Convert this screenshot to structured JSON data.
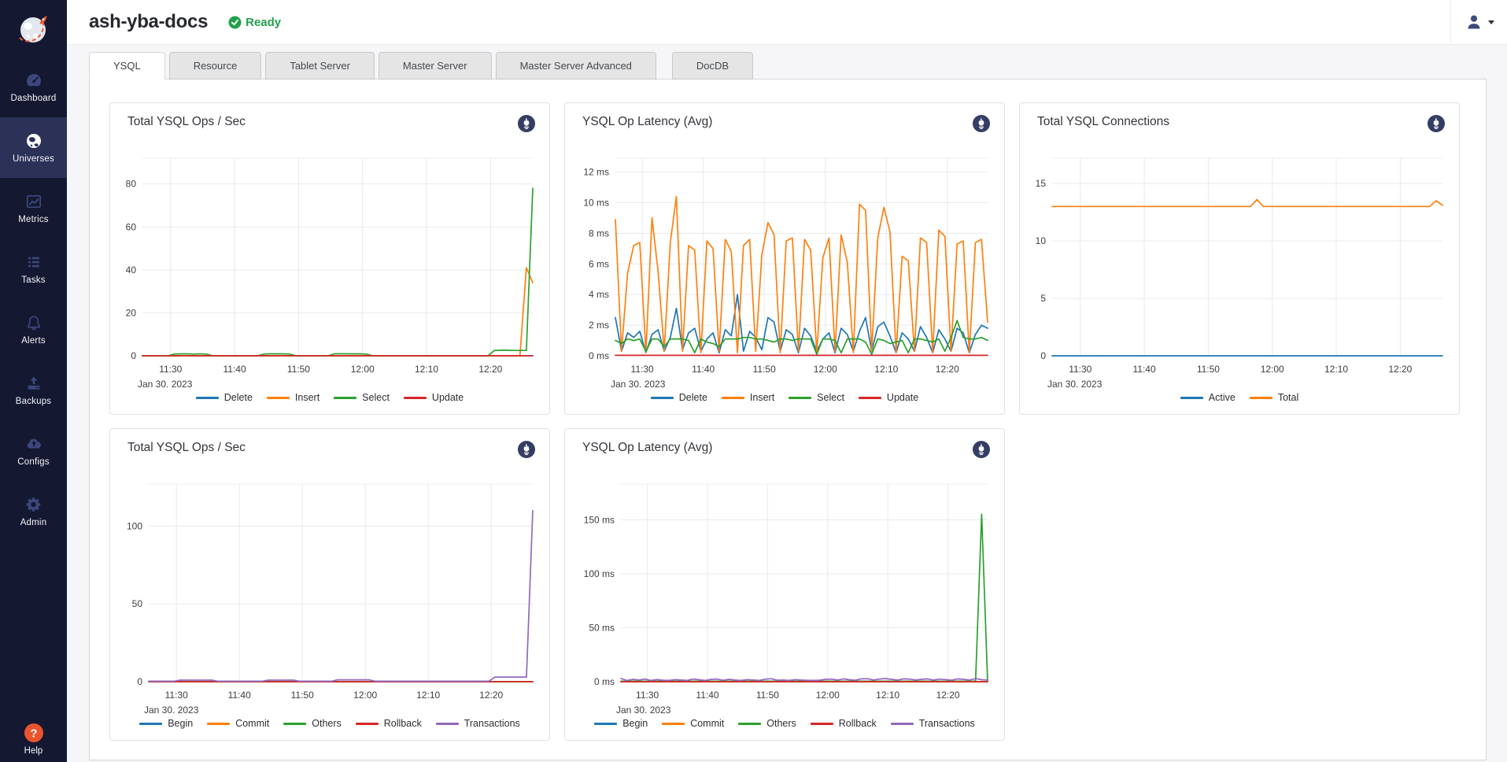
{
  "app": {
    "title": "ash-yba-docs",
    "status": "Ready"
  },
  "colors": {
    "sidebar_bg": "#151831",
    "sidebar_active_bg": "#2b3157",
    "ready_green": "#23a04b",
    "help_orange": "#e9542e",
    "series_blue": "#1f77b4",
    "series_orange": "#ff7f0e",
    "series_green": "#2ca02c",
    "series_red": "#d62728",
    "series_purple": "#9467bd"
  },
  "sidebar": {
    "items": [
      {
        "id": "dashboard",
        "label": "Dashboard",
        "icon": "dashboard-gauge-icon",
        "active": false
      },
      {
        "id": "universes",
        "label": "Universes",
        "icon": "universe-globe-icon",
        "active": true
      },
      {
        "id": "metrics",
        "label": "Metrics",
        "icon": "metrics-chart-icon",
        "active": false
      },
      {
        "id": "tasks",
        "label": "Tasks",
        "icon": "tasks-list-icon",
        "active": false
      },
      {
        "id": "alerts",
        "label": "Alerts",
        "icon": "alerts-bell-icon",
        "active": false
      },
      {
        "id": "backups",
        "label": "Backups",
        "icon": "backups-upload-icon",
        "active": false
      },
      {
        "id": "configs",
        "label": "Configs",
        "icon": "configs-cloud-icon",
        "active": false
      },
      {
        "id": "admin",
        "label": "Admin",
        "icon": "admin-gear-icon",
        "active": false
      }
    ],
    "help": {
      "label": "Help",
      "icon": "help-icon"
    }
  },
  "tabs": [
    {
      "label": "YSQL",
      "active": true
    },
    {
      "label": "Resource",
      "active": false
    },
    {
      "label": "Tablet Server",
      "active": false
    },
    {
      "label": "Master Server",
      "active": false
    },
    {
      "label": "Master Server Advanced",
      "active": false
    },
    {
      "label": "DocDB",
      "active": false,
      "gap_before": true
    }
  ],
  "chart_data": [
    {
      "type": "line",
      "title": "Total YSQL Ops / Sec",
      "x_min": 0,
      "x_max": 61,
      "x_count": 62,
      "x_ticks": [
        {
          "v": 4.4,
          "label": "11:30"
        },
        {
          "v": 14.4,
          "label": "11:40"
        },
        {
          "v": 24.4,
          "label": "11:50"
        },
        {
          "v": 34.4,
          "label": "12:00"
        },
        {
          "v": 44.4,
          "label": "12:10"
        },
        {
          "v": 54.4,
          "label": "12:20"
        }
      ],
      "date_label": "Jan 30, 2023",
      "y_max": 92,
      "y_ticks": [
        {
          "v": 0,
          "label": "0"
        },
        {
          "v": 20,
          "label": "20"
        },
        {
          "v": 40,
          "label": "40"
        },
        {
          "v": 60,
          "label": "60"
        },
        {
          "v": 80,
          "label": "80"
        }
      ],
      "legend_position": "bottom-center",
      "grid": true,
      "series": [
        {
          "name": "Delete",
          "color": "#1f77b4",
          "values": 0.05
        },
        {
          "name": "Insert",
          "color": "#ff7f0e",
          "values": [
            0,
            0,
            0,
            0,
            0,
            0,
            0,
            0,
            0,
            0,
            0,
            0,
            0,
            0,
            0,
            0,
            0,
            0,
            0,
            0,
            0,
            0,
            0,
            0,
            0,
            0,
            0,
            0,
            0,
            0,
            0,
            0,
            0,
            0,
            0,
            0,
            0,
            0,
            0,
            0,
            0,
            0,
            0,
            0,
            0,
            0,
            0,
            0,
            0,
            0,
            0,
            0,
            0,
            0,
            0,
            0,
            0,
            0,
            0,
            0,
            41,
            34
          ]
        },
        {
          "name": "Select",
          "color": "#2ca02c",
          "values": [
            0,
            0,
            0,
            0,
            0,
            0.8,
            0.9,
            0.9,
            0.8,
            0.9,
            0.8,
            0,
            0,
            0,
            0,
            0,
            0,
            0,
            0,
            0.8,
            0.9,
            0.9,
            0.9,
            0.8,
            0,
            0,
            0,
            0,
            0,
            0,
            0.9,
            1,
            0.9,
            0.9,
            0.9,
            0.8,
            0,
            0,
            0,
            0,
            0,
            0,
            0,
            0,
            0,
            0,
            0,
            0,
            0,
            0,
            0,
            0,
            0,
            0,
            0,
            2.5,
            2.6,
            2.6,
            2.5,
            2.5,
            2.5,
            78
          ]
        },
        {
          "name": "Update",
          "color": "#d62728",
          "values": 0.02
        }
      ]
    },
    {
      "type": "line",
      "title": "YSQL Op Latency (Avg)",
      "x_min": 0,
      "x_max": 61,
      "x_count": 62,
      "x_ticks": [
        {
          "v": 4.4,
          "label": "11:30"
        },
        {
          "v": 14.4,
          "label": "11:40"
        },
        {
          "v": 24.4,
          "label": "11:50"
        },
        {
          "v": 34.4,
          "label": "12:00"
        },
        {
          "v": 44.4,
          "label": "12:10"
        },
        {
          "v": 54.4,
          "label": "12:20"
        }
      ],
      "date_label": "Jan 30, 2023",
      "y_max": 12.9,
      "y_ticks": [
        {
          "v": 0,
          "label": "0 ms"
        },
        {
          "v": 2,
          "label": "2 ms"
        },
        {
          "v": 4,
          "label": "4 ms"
        },
        {
          "v": 6,
          "label": "6 ms"
        },
        {
          "v": 8,
          "label": "8 ms"
        },
        {
          "v": 10,
          "label": "10 ms"
        },
        {
          "v": 12,
          "label": "12 ms"
        }
      ],
      "legend_position": "bottom-center",
      "grid": true,
      "series": [
        {
          "name": "Delete",
          "color": "#1f77b4",
          "values": [
            2.5,
            0.3,
            1.5,
            1.2,
            1.6,
            0.2,
            1.4,
            1.7,
            0.3,
            1.2,
            3.1,
            0.4,
            1.5,
            1.8,
            0.3,
            1.1,
            1.5,
            0.2,
            1.7,
            1.3,
            4,
            0.3,
            1.6,
            1.2,
            0.4,
            2.5,
            2.2,
            0.3,
            1.7,
            1.4,
            0.2,
            1.8,
            1.3,
            0.3,
            1.1,
            1.5,
            0.2,
            1.8,
            1.4,
            0.3,
            1.6,
            2.5,
            0.3,
            1.9,
            2.2,
            1.3,
            0.2,
            1.5,
            1.1,
            0.3,
            1.9,
            1.2,
            0.2,
            1.7,
            1.1,
            0.3,
            1.8,
            1.5,
            0.2,
            1.4,
            2,
            1.8
          ]
        },
        {
          "name": "Insert",
          "color": "#ff7f0e",
          "values": [
            8.9,
            0.3,
            5.4,
            7.2,
            7.4,
            0.2,
            9,
            5.5,
            0.3,
            7.4,
            10.4,
            0.3,
            7.2,
            6.9,
            0.2,
            7.5,
            7,
            0.3,
            7.6,
            6.8,
            0.2,
            7.2,
            7.6,
            0.3,
            6.6,
            8.7,
            7.9,
            0.2,
            7.5,
            7.7,
            0.3,
            7.6,
            6.9,
            0.2,
            6.4,
            7.7,
            0.3,
            7.9,
            6.1,
            0.2,
            9.9,
            9.5,
            0.3,
            7.7,
            9.7,
            8.1,
            0.2,
            6.5,
            6.2,
            0.3,
            7.7,
            7.4,
            0.2,
            8.2,
            7.8,
            0.3,
            7.3,
            7.5,
            0.2,
            7.4,
            7.6,
            2.2
          ]
        },
        {
          "name": "Select",
          "color": "#2ca02c",
          "values": [
            1,
            0.8,
            1.1,
            1,
            1.1,
            0.3,
            1.1,
            1.1,
            0.6,
            1.1,
            1.1,
            1.1,
            1,
            0.2,
            1.1,
            0.9,
            0.8,
            0.6,
            1.1,
            1.1,
            1.1,
            1.2,
            1.2,
            1.1,
            1.1,
            1,
            0.9,
            1.1,
            1.1,
            1,
            1.1,
            1.1,
            1.1,
            0.1,
            1.1,
            1.1,
            1,
            0.2,
            1.1,
            1.1,
            1.1,
            0.9,
            0.1,
            1.1,
            1,
            0.8,
            0.9,
            1,
            0.2,
            1.1,
            1.1,
            1,
            0.9,
            1.1,
            0.3,
            1.2,
            2.3,
            1.2,
            1.1,
            1.1,
            1.2,
            1
          ]
        },
        {
          "name": "Update",
          "color": "#d62728",
          "values": 0.03
        }
      ]
    },
    {
      "type": "line",
      "title": "Total YSQL Connections",
      "x_min": 0,
      "x_max": 61,
      "x_count": 62,
      "x_ticks": [
        {
          "v": 4.4,
          "label": "11:30"
        },
        {
          "v": 14.4,
          "label": "11:40"
        },
        {
          "v": 24.4,
          "label": "11:50"
        },
        {
          "v": 34.4,
          "label": "12:00"
        },
        {
          "v": 44.4,
          "label": "12:10"
        },
        {
          "v": 54.4,
          "label": "12:20"
        }
      ],
      "date_label": "Jan 30, 2023",
      "y_max": 17.2,
      "y_ticks": [
        {
          "v": 0,
          "label": "0"
        },
        {
          "v": 5,
          "label": "5"
        },
        {
          "v": 10,
          "label": "10"
        },
        {
          "v": 15,
          "label": "15"
        }
      ],
      "legend_position": "bottom-center",
      "grid": true,
      "series": [
        {
          "name": "Active",
          "color": "#1f77b4",
          "values": 0
        },
        {
          "name": "Total",
          "color": "#ff7f0e",
          "values": [
            13,
            13,
            13,
            13,
            13,
            13,
            13,
            13,
            13,
            13,
            13,
            13,
            13,
            13,
            13,
            13,
            13,
            13,
            13,
            13,
            13,
            13,
            13,
            13,
            13,
            13,
            13,
            13,
            13,
            13,
            13,
            13,
            13.6,
            13,
            13,
            13,
            13,
            13,
            13,
            13,
            13,
            13,
            13,
            13,
            13,
            13,
            13,
            13,
            13,
            13,
            13,
            13,
            13,
            13,
            13,
            13,
            13,
            13,
            13,
            13,
            13.5,
            13.1
          ]
        }
      ]
    },
    {
      "type": "line",
      "title": "Total YSQL Ops / Sec",
      "x_min": 0,
      "x_max": 61,
      "x_count": 62,
      "x_ticks": [
        {
          "v": 4.4,
          "label": "11:30"
        },
        {
          "v": 14.4,
          "label": "11:40"
        },
        {
          "v": 24.4,
          "label": "11:50"
        },
        {
          "v": 34.4,
          "label": "12:00"
        },
        {
          "v": 44.4,
          "label": "12:10"
        },
        {
          "v": 54.4,
          "label": "12:20"
        }
      ],
      "date_label": "Jan 30, 2023",
      "y_max": 127,
      "y_ticks": [
        {
          "v": 0,
          "label": "0"
        },
        {
          "v": 50,
          "label": "50"
        },
        {
          "v": 100,
          "label": "100"
        }
      ],
      "legend_position": "bottom-center",
      "grid": true,
      "series": [
        {
          "name": "Begin",
          "color": "#1f77b4",
          "values": 0.04
        },
        {
          "name": "Commit",
          "color": "#ff7f0e",
          "values": 0.06
        },
        {
          "name": "Others",
          "color": "#2ca02c",
          "values": 0.03
        },
        {
          "name": "Rollback",
          "color": "#d62728",
          "values": 0.01
        },
        {
          "name": "Transactions",
          "color": "#9467bd",
          "values": [
            0.3,
            0.3,
            0.3,
            0.3,
            0.3,
            1,
            1,
            1,
            1,
            1,
            1,
            0.3,
            0.3,
            0.3,
            0.3,
            0.3,
            0.3,
            0.3,
            0.3,
            1,
            1,
            1,
            1,
            1,
            0.3,
            0.3,
            0.3,
            0.3,
            0.3,
            0.3,
            1.2,
            1.2,
            1.2,
            1.2,
            1.2,
            1.2,
            0.3,
            0.3,
            0.3,
            0.3,
            0.3,
            0.3,
            0.3,
            0.3,
            0.3,
            0.3,
            0.3,
            0.3,
            0.3,
            0.3,
            0.3,
            0.3,
            0.3,
            0.3,
            0.3,
            3,
            3,
            3,
            3,
            3,
            3,
            110
          ]
        }
      ]
    },
    {
      "type": "line",
      "title": "YSQL Op Latency (Avg)",
      "x_min": 0,
      "x_max": 61,
      "x_count": 62,
      "x_ticks": [
        {
          "v": 4.4,
          "label": "11:30"
        },
        {
          "v": 14.4,
          "label": "11:40"
        },
        {
          "v": 24.4,
          "label": "11:50"
        },
        {
          "v": 34.4,
          "label": "12:00"
        },
        {
          "v": 44.4,
          "label": "12:10"
        },
        {
          "v": 54.4,
          "label": "12:20"
        }
      ],
      "date_label": "Jan 30, 2023",
      "y_max": 183,
      "y_ticks": [
        {
          "v": 0,
          "label": "0 ms"
        },
        {
          "v": 50,
          "label": "50 ms"
        },
        {
          "v": 100,
          "label": "100 ms"
        },
        {
          "v": 150,
          "label": "150 ms"
        }
      ],
      "legend_position": "bottom-center",
      "grid": true,
      "series": [
        {
          "name": "Begin",
          "color": "#1f77b4",
          "values": 0.03
        },
        {
          "name": "Commit",
          "color": "#ff7f0e",
          "values": 0.05
        },
        {
          "name": "Others",
          "color": "#2ca02c",
          "values": [
            0.5,
            0.5,
            0.5,
            0.5,
            0.5,
            0.5,
            0.5,
            0.5,
            0.5,
            0.5,
            0.5,
            0.5,
            0.5,
            0.5,
            0.5,
            0.5,
            0.5,
            0.5,
            0.5,
            0.5,
            0.5,
            0.5,
            0.5,
            0.5,
            0.5,
            0.5,
            0.5,
            0.5,
            0.5,
            0.5,
            0.5,
            0.5,
            0.5,
            0.5,
            0.5,
            0.5,
            0.5,
            0.5,
            0.5,
            0.5,
            0.5,
            0.5,
            0.5,
            0.5,
            0.5,
            0.5,
            0.5,
            0.5,
            0.5,
            0.5,
            0.5,
            0.5,
            0.5,
            0.5,
            0.5,
            0.5,
            0.5,
            0.5,
            0.5,
            0.5,
            155,
            0.5
          ]
        },
        {
          "name": "Rollback",
          "color": "#d62728",
          "values": 0.02
        },
        {
          "name": "Transactions",
          "color": "#9467bd",
          "values": [
            3,
            1.2,
            2.2,
            1.5,
            2.5,
            1.2,
            2,
            1.4,
            1.2,
            2,
            1.5,
            1.2,
            2.5,
            1.8,
            1.2,
            2.2,
            2.4,
            1.3,
            2.2,
            1.5,
            1.2,
            2,
            1.6,
            1.2,
            2.3,
            2.8,
            1.4,
            1.6,
            1.2,
            2,
            1.5,
            1.3,
            1.2,
            1.4,
            2.2,
            2.4,
            1.5,
            2.6,
            1.8,
            1.4,
            2.6,
            2.8,
            1.6,
            2.4,
            2.9,
            2.2,
            1.5,
            2.6,
            2.4,
            1.6,
            2.2,
            2.6,
            1.5,
            2.4,
            2,
            1.4,
            2.6,
            2.2,
            1.5,
            3,
            1.8,
            1.5
          ]
        }
      ]
    }
  ]
}
